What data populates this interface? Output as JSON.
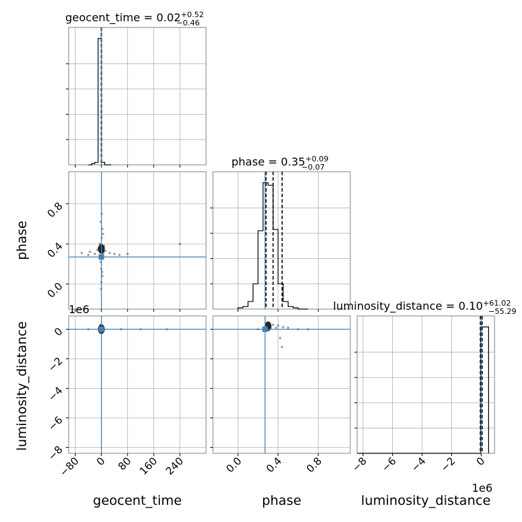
{
  "chart_data": [
    {
      "panel": "geocent_time histogram",
      "type": "bar",
      "title": "geocent_time = 0.02^{+0.52}_{-0.46}",
      "title_parts": {
        "main": "geocent_time = 0.02",
        "sup": "+0.52",
        "sub": "−0.46"
      },
      "bin_edges": [
        -40,
        -30,
        -20,
        -10,
        0,
        10,
        20,
        30
      ],
      "values": [
        0,
        0.01,
        0.02,
        1.0,
        0.02,
        0.0,
        0.0
      ],
      "xlim": [
        -100,
        320
      ],
      "quantile_lines": [
        -0.44,
        0.02,
        0.54
      ],
      "truth": 0
    },
    {
      "panel": "phase vs geocent_time",
      "type": "scatter",
      "x_var": "geocent_time",
      "y_var": "phase",
      "xlim": [
        -100,
        320
      ],
      "ylim": [
        -0.25,
        1.12
      ],
      "y_ticks": [
        "0.0",
        "0.4",
        "0.8"
      ],
      "points": [
        [
          0,
          0.35
        ],
        [
          -3,
          0.33
        ],
        [
          2,
          0.37
        ],
        [
          -5,
          0.4
        ],
        [
          4,
          0.28
        ],
        [
          1,
          0.46
        ],
        [
          -2,
          0.22
        ],
        [
          6,
          0.31
        ],
        [
          -8,
          0.36
        ],
        [
          8,
          0.38
        ],
        [
          -12,
          0.34
        ],
        [
          12,
          0.33
        ],
        [
          -20,
          0.3
        ],
        [
          25,
          0.31
        ],
        [
          -35,
          0.32
        ],
        [
          40,
          0.3
        ],
        [
          3,
          0.55
        ],
        [
          -2,
          0.62
        ],
        [
          1,
          0.7
        ],
        [
          0,
          0.02
        ],
        [
          -1,
          -0.05
        ],
        [
          2,
          0.12
        ],
        [
          -40,
          0.29
        ],
        [
          55,
          0.29
        ],
        [
          -60,
          0.31
        ],
        [
          80,
          0.3
        ],
        [
          240,
          0.4
        ],
        [
          -1,
          0.15
        ],
        [
          3,
          0.08
        ],
        [
          5,
          0.5
        ]
      ],
      "truth": [
        0,
        0.27
      ]
    },
    {
      "panel": "phase histogram",
      "type": "bar",
      "title": "phase = 0.35^{+0.09}_{-0.07}",
      "title_parts": {
        "main": "phase = 0.35",
        "sup": "+0.09",
        "sub": "−0.07"
      },
      "bin_edges": [
        0.0,
        0.05,
        0.1,
        0.15,
        0.2,
        0.25,
        0.3,
        0.35,
        0.4,
        0.45,
        0.5,
        0.55,
        0.6,
        0.65,
        0.7
      ],
      "values": [
        0.01,
        0.02,
        0.06,
        0.2,
        0.62,
        1.0,
        0.98,
        0.63,
        0.2,
        0.06,
        0.02,
        0.01,
        0.0,
        0.0
      ],
      "xlim": [
        -0.25,
        1.12
      ],
      "quantile_lines": [
        0.28,
        0.35,
        0.44
      ],
      "truth": 0.27
    },
    {
      "panel": "luminosity_distance vs geocent_time",
      "type": "scatter",
      "x_var": "geocent_time",
      "y_var": "luminosity_distance",
      "xlim": [
        -100,
        320
      ],
      "ylim": [
        -8.4,
        0.9
      ],
      "y_scale_label": "1e6",
      "x_ticks": [
        "−80",
        "0",
        "80",
        "160",
        "240"
      ],
      "y_ticks": [
        "0",
        "−2",
        "−4",
        "−6",
        "−8"
      ],
      "points": [
        [
          0,
          0.0
        ],
        [
          -2,
          0.3
        ],
        [
          2,
          0.25
        ],
        [
          -4,
          0.2
        ],
        [
          3,
          0.1
        ],
        [
          0,
          -0.1
        ],
        [
          -40,
          0.0
        ],
        [
          60,
          0.0
        ],
        [
          120,
          0.0
        ],
        [
          200,
          0.0
        ]
      ],
      "truth": [
        0,
        0.0
      ]
    },
    {
      "panel": "luminosity_distance vs phase",
      "type": "scatter",
      "x_var": "phase",
      "y_var": "luminosity_distance",
      "xlim": [
        -0.25,
        1.12
      ],
      "ylim": [
        -8.4,
        0.9
      ],
      "x_ticks": [
        "0.0",
        "0.4",
        "0.8"
      ],
      "points": [
        [
          0.3,
          0.2
        ],
        [
          0.35,
          0.3
        ],
        [
          0.4,
          0.25
        ],
        [
          0.45,
          0.15
        ],
        [
          0.38,
          0.1
        ],
        [
          0.32,
          0.05
        ],
        [
          0.5,
          0.1
        ],
        [
          0.42,
          -0.6
        ],
        [
          0.44,
          -1.2
        ],
        [
          0.6,
          0.0
        ],
        [
          0.2,
          0.0
        ],
        [
          0.7,
          0.0
        ]
      ],
      "truth": [
        0.27,
        0.0
      ]
    },
    {
      "panel": "luminosity_distance histogram",
      "type": "bar",
      "title": "luminosity_distance = 0.10^{+61.02}_{-55.29}",
      "title_parts": {
        "main": "luminosity_distance = 0.10",
        "sup": "+61.02",
        "sub": "−55.29"
      },
      "x_scale_label": "1e6",
      "bin_edges": [
        -8.4,
        -0.03,
        0.5
      ],
      "values": [
        0.0,
        1.0
      ],
      "xlim": [
        -8.4,
        0.9
      ],
      "x_ticks": [
        "−8",
        "−6",
        "−4",
        "−2",
        "0"
      ],
      "quantile_lines": [
        -0.06,
        0.0,
        0.06
      ],
      "truth": 0
    }
  ],
  "axis_labels": {
    "x": [
      "geocent_time",
      "phase",
      "luminosity_distance"
    ],
    "y": [
      "phase",
      "luminosity_distance"
    ]
  },
  "colors": {
    "truth": "#4682b4",
    "grid": "#b0b0b0",
    "line": "#000000",
    "points": "#404040"
  }
}
